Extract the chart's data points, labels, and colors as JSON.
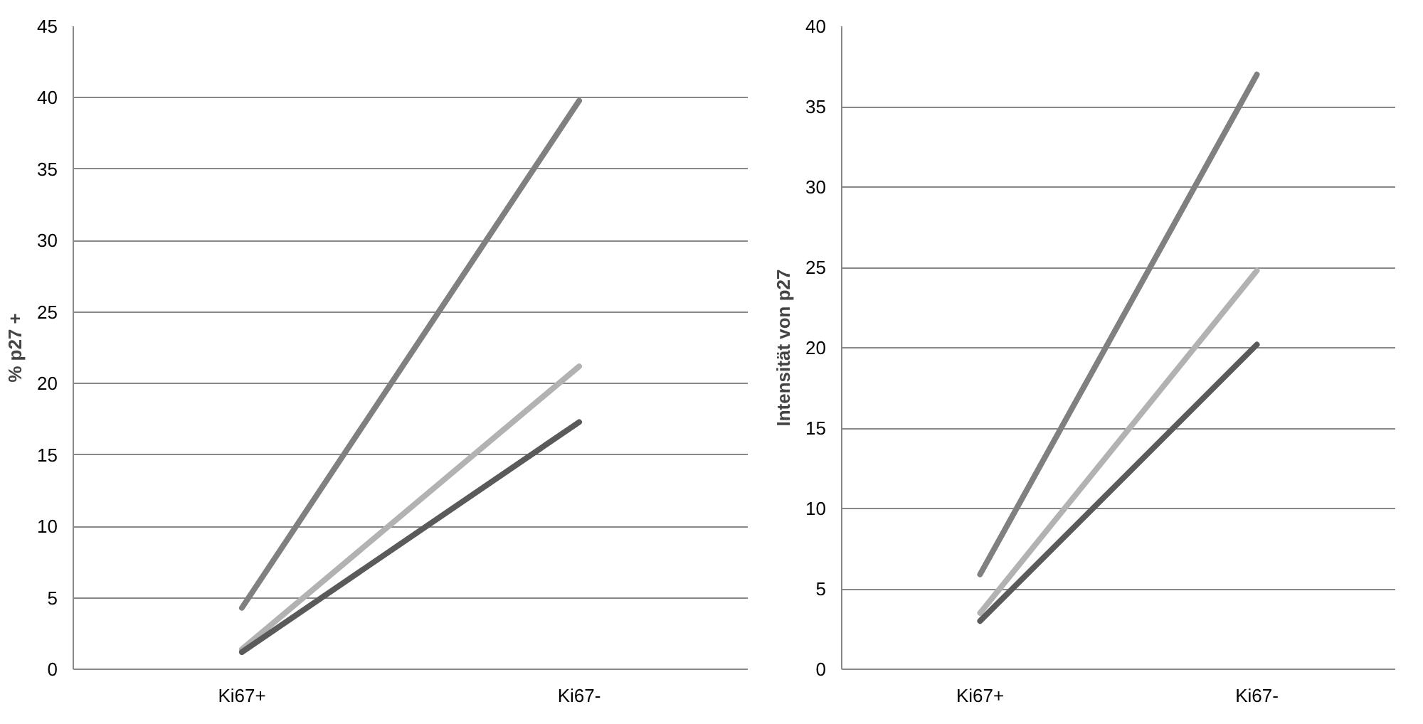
{
  "chart_data": [
    {
      "type": "line",
      "ylabel": "% p27 +",
      "categories": [
        "Ki67+",
        "Ki67-"
      ],
      "ylim": [
        0,
        45
      ],
      "yticks": [
        0,
        5,
        10,
        15,
        20,
        25,
        30,
        35,
        40,
        45
      ],
      "grid": "y",
      "marker": "none",
      "line_style": "solid",
      "series": [
        {
          "color": "#808080",
          "values": [
            4.3,
            39.8
          ]
        },
        {
          "color": "#b2b2b2",
          "values": [
            1.4,
            21.2
          ]
        },
        {
          "color": "#5a5a5a",
          "values": [
            1.2,
            17.3
          ]
        }
      ]
    },
    {
      "type": "line",
      "ylabel": "Intensität von p27",
      "categories": [
        "Ki67+",
        "Ki67-"
      ],
      "ylim": [
        0,
        40
      ],
      "yticks": [
        0,
        5,
        10,
        15,
        20,
        25,
        30,
        35,
        40
      ],
      "grid": "y",
      "marker": "none",
      "line_style": "solid",
      "series": [
        {
          "color": "#808080",
          "values": [
            5.9,
            37.0
          ]
        },
        {
          "color": "#b2b2b2",
          "values": [
            3.5,
            24.8
          ]
        },
        {
          "color": "#5a5a5a",
          "values": [
            3.0,
            20.2
          ]
        }
      ]
    }
  ]
}
